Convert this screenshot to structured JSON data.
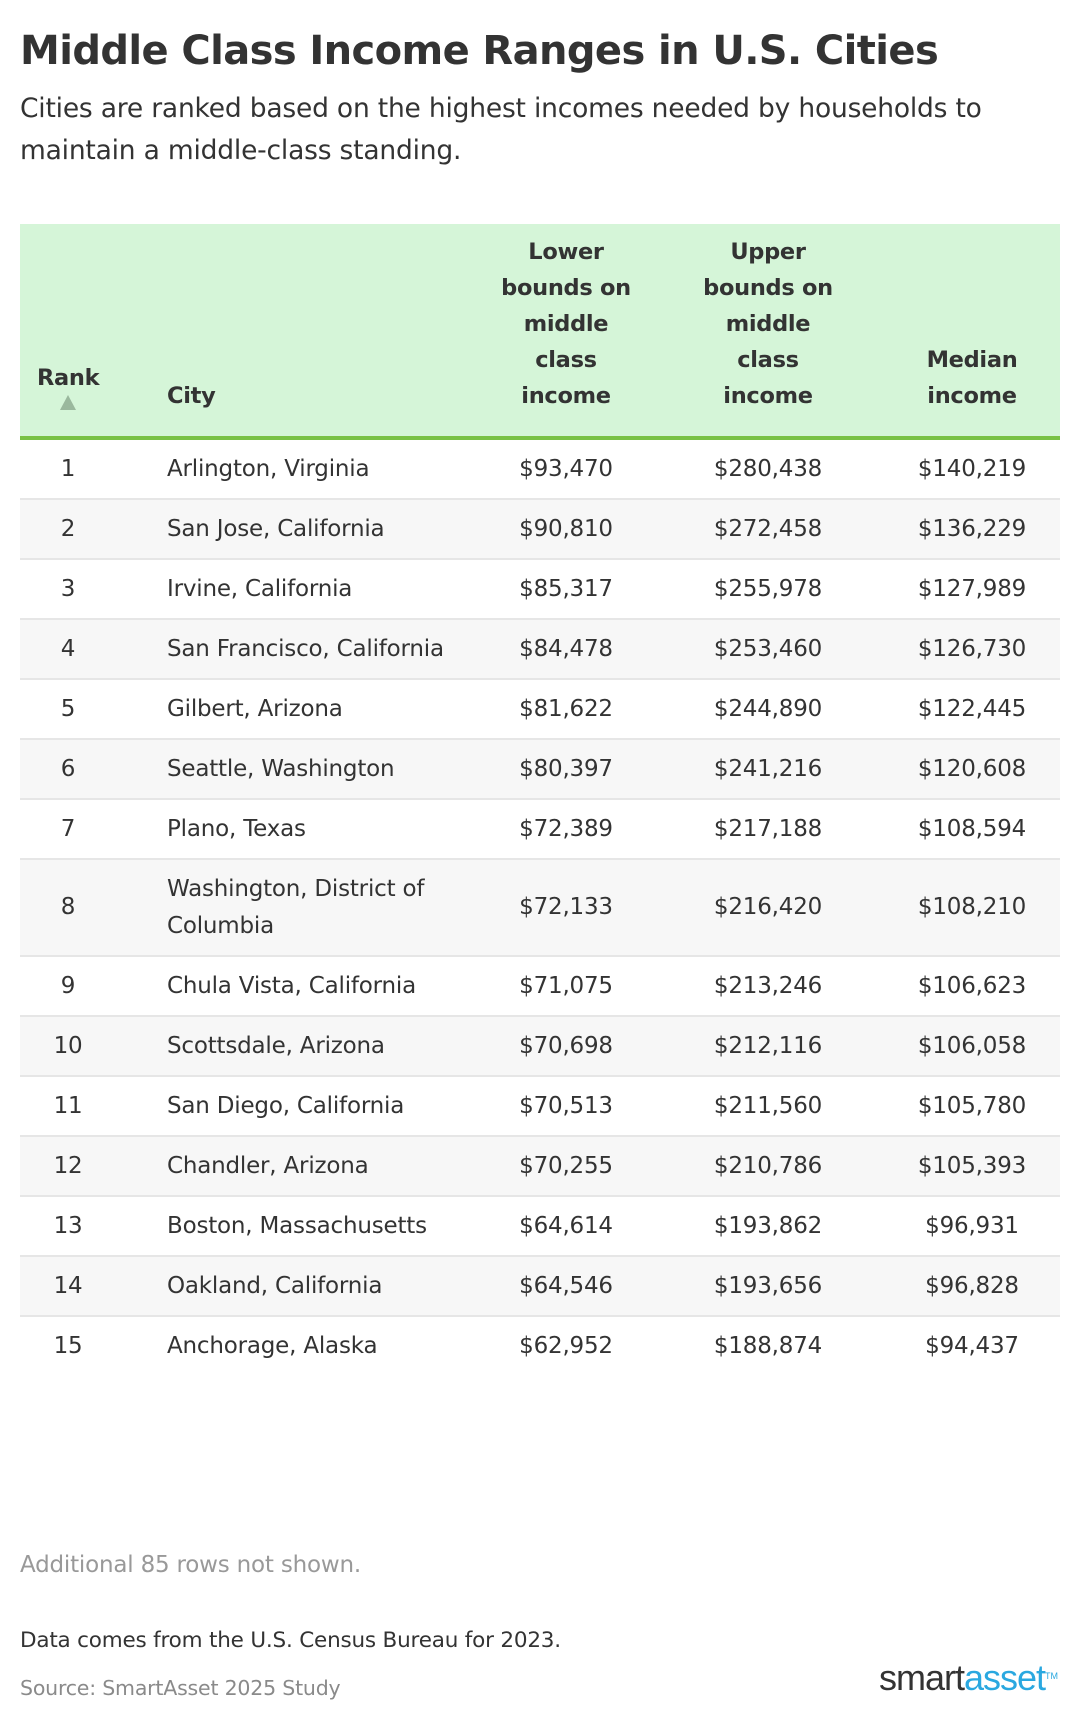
{
  "header": {
    "title": "Middle Class Income Ranges in U.S. Cities",
    "subtitle": "Cities are ranked based on the highest incomes needed by households to maintain a middle-class standing."
  },
  "table": {
    "columns": {
      "rank": "Rank",
      "city": "City",
      "lower": "Lower bounds on middle class income",
      "upper": "Upper bounds on middle class income",
      "median": "Median income"
    },
    "sort": {
      "column": "rank",
      "direction": "ascending",
      "icon": "sort-ascending-triangle-icon",
      "color": "#9ab89d"
    },
    "rows": [
      {
        "rank": "1",
        "city": "Arlington, Virginia",
        "lower": "$93,470",
        "upper": "$280,438",
        "median": "$140,219"
      },
      {
        "rank": "2",
        "city": "San Jose, California",
        "lower": "$90,810",
        "upper": "$272,458",
        "median": "$136,229"
      },
      {
        "rank": "3",
        "city": "Irvine, California",
        "lower": "$85,317",
        "upper": "$255,978",
        "median": "$127,989"
      },
      {
        "rank": "4",
        "city": "San Francisco, California",
        "lower": "$84,478",
        "upper": "$253,460",
        "median": "$126,730"
      },
      {
        "rank": "5",
        "city": "Gilbert, Arizona",
        "lower": "$81,622",
        "upper": "$244,890",
        "median": "$122,445"
      },
      {
        "rank": "6",
        "city": "Seattle, Washington",
        "lower": "$80,397",
        "upper": "$241,216",
        "median": "$120,608"
      },
      {
        "rank": "7",
        "city": "Plano, Texas",
        "lower": "$72,389",
        "upper": "$217,188",
        "median": "$108,594"
      },
      {
        "rank": "8",
        "city": "Washington, District of Columbia",
        "lower": "$72,133",
        "upper": "$216,420",
        "median": "$108,210"
      },
      {
        "rank": "9",
        "city": "Chula Vista, California",
        "lower": "$71,075",
        "upper": "$213,246",
        "median": "$106,623"
      },
      {
        "rank": "10",
        "city": "Scottsdale, Arizona",
        "lower": "$70,698",
        "upper": "$212,116",
        "median": "$106,058"
      },
      {
        "rank": "11",
        "city": "San Diego, California",
        "lower": "$70,513",
        "upper": "$211,560",
        "median": "$105,780"
      },
      {
        "rank": "12",
        "city": "Chandler, Arizona",
        "lower": "$70,255",
        "upper": "$210,786",
        "median": "$105,393"
      },
      {
        "rank": "13",
        "city": "Boston, Massachusetts",
        "lower": "$64,614",
        "upper": "$193,862",
        "median": "$96,931"
      },
      {
        "rank": "14",
        "city": "Oakland, California",
        "lower": "$64,546",
        "upper": "$193,656",
        "median": "$96,828"
      },
      {
        "rank": "15",
        "city": "Anchorage, Alaska",
        "lower": "$62,952",
        "upper": "$188,874",
        "median": "$94,437"
      }
    ],
    "more_rows_note": "Additional 85 rows not shown."
  },
  "footer": {
    "data_note": "Data comes from the U.S. Census Bureau for 2023.",
    "source": "Source: SmartAsset 2025 Study",
    "logo": {
      "part1": "smart",
      "part2": "asset",
      "tm": "TM",
      "color_dark": "#333333",
      "color_accent": "#2aa8e0"
    }
  },
  "colors": {
    "header_bg": "#d5f5d8",
    "header_rule": "#79c145",
    "row_alt_bg": "#f7f7f7",
    "row_border": "#e6e6e6"
  },
  "chart_data": {
    "type": "table",
    "title": "Middle Class Income Ranges in U.S. Cities",
    "subtitle": "Cities are ranked based on the highest incomes needed by households to maintain a middle-class standing.",
    "columns": [
      "Rank",
      "City",
      "Lower bounds on middle class income",
      "Upper bounds on middle class income",
      "Median income"
    ],
    "rows": [
      [
        1,
        "Arlington, Virginia",
        93470,
        280438,
        140219
      ],
      [
        2,
        "San Jose, California",
        90810,
        272458,
        136229
      ],
      [
        3,
        "Irvine, California",
        85317,
        255978,
        127989
      ],
      [
        4,
        "San Francisco, California",
        84478,
        253460,
        126730
      ],
      [
        5,
        "Gilbert, Arizona",
        81622,
        244890,
        122445
      ],
      [
        6,
        "Seattle, Washington",
        80397,
        241216,
        120608
      ],
      [
        7,
        "Plano, Texas",
        72389,
        217188,
        108594
      ],
      [
        8,
        "Washington, District of Columbia",
        72133,
        216420,
        108210
      ],
      [
        9,
        "Chula Vista, California",
        71075,
        213246,
        106623
      ],
      [
        10,
        "Scottsdale, Arizona",
        70698,
        212116,
        106058
      ],
      [
        11,
        "San Diego, California",
        70513,
        211560,
        105780
      ],
      [
        12,
        "Chandler, Arizona",
        70255,
        210786,
        105393
      ],
      [
        13,
        "Boston, Massachusetts",
        64614,
        193862,
        96931
      ],
      [
        14,
        "Oakland, California",
        64546,
        193656,
        96828
      ],
      [
        15,
        "Anchorage, Alaska",
        62952,
        188874,
        94437
      ]
    ],
    "annotations": [
      "Additional 85 rows not shown.",
      "Data comes from the U.S. Census Bureau for 2023.",
      "Source: SmartAsset 2025 Study"
    ]
  }
}
